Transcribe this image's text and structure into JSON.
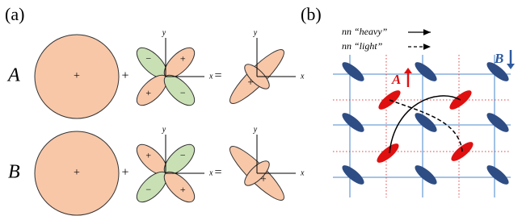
{
  "panel_a": {
    "label": "(a)",
    "rows": [
      {
        "name": "A"
      },
      {
        "name": "B"
      }
    ],
    "plus": "+",
    "minus": "−",
    "equals": "=",
    "x_axis": "x",
    "y_axis": "y"
  },
  "panel_b": {
    "label": "(b)",
    "legend": [
      {
        "label": "nn “heavy”"
      },
      {
        "label": "nn “light”"
      }
    ],
    "spin_a": "A",
    "spin_b": "B"
  }
}
